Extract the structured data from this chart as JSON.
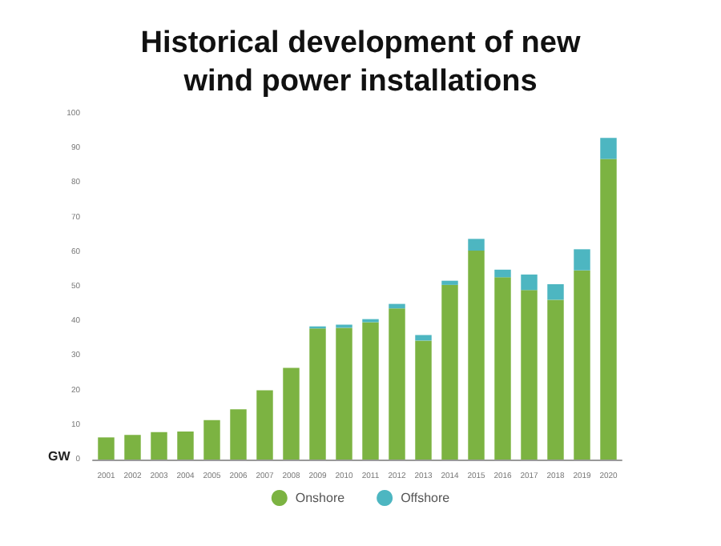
{
  "chart_data": {
    "type": "bar",
    "title": "Historical development of new\nwind power installations",
    "ylabel": "GW",
    "stacked": true,
    "categories": [
      "2001",
      "2002",
      "2003",
      "2004",
      "2005",
      "2006",
      "2007",
      "2008",
      "2009",
      "2010",
      "2011",
      "2012",
      "2013",
      "2014",
      "2015",
      "2016",
      "2017",
      "2018",
      "2019",
      "2020"
    ],
    "series": [
      {
        "name": "Onshore",
        "color": "#7cb342",
        "values": [
          6.4,
          7.1,
          7.9,
          8.1,
          11.4,
          14.5,
          20.0,
          26.5,
          37.9,
          38.1,
          39.7,
          43.7,
          34.4,
          50.5,
          60.4,
          52.7,
          49.0,
          46.2,
          54.7,
          86.9
        ]
      },
      {
        "name": "Offshore",
        "color": "#4db6c1",
        "values": [
          null,
          null,
          null,
          null,
          null,
          null,
          null,
          null,
          0.6,
          0.9,
          0.9,
          1.3,
          1.6,
          1.2,
          3.4,
          2.2,
          4.5,
          4.5,
          6.1,
          6.1
        ]
      }
    ],
    "ylim": [
      0,
      100
    ],
    "yticks": [
      0,
      10,
      20,
      30,
      40,
      50,
      60,
      70,
      80,
      90,
      100
    ],
    "grid": false,
    "legend": "bottom"
  }
}
